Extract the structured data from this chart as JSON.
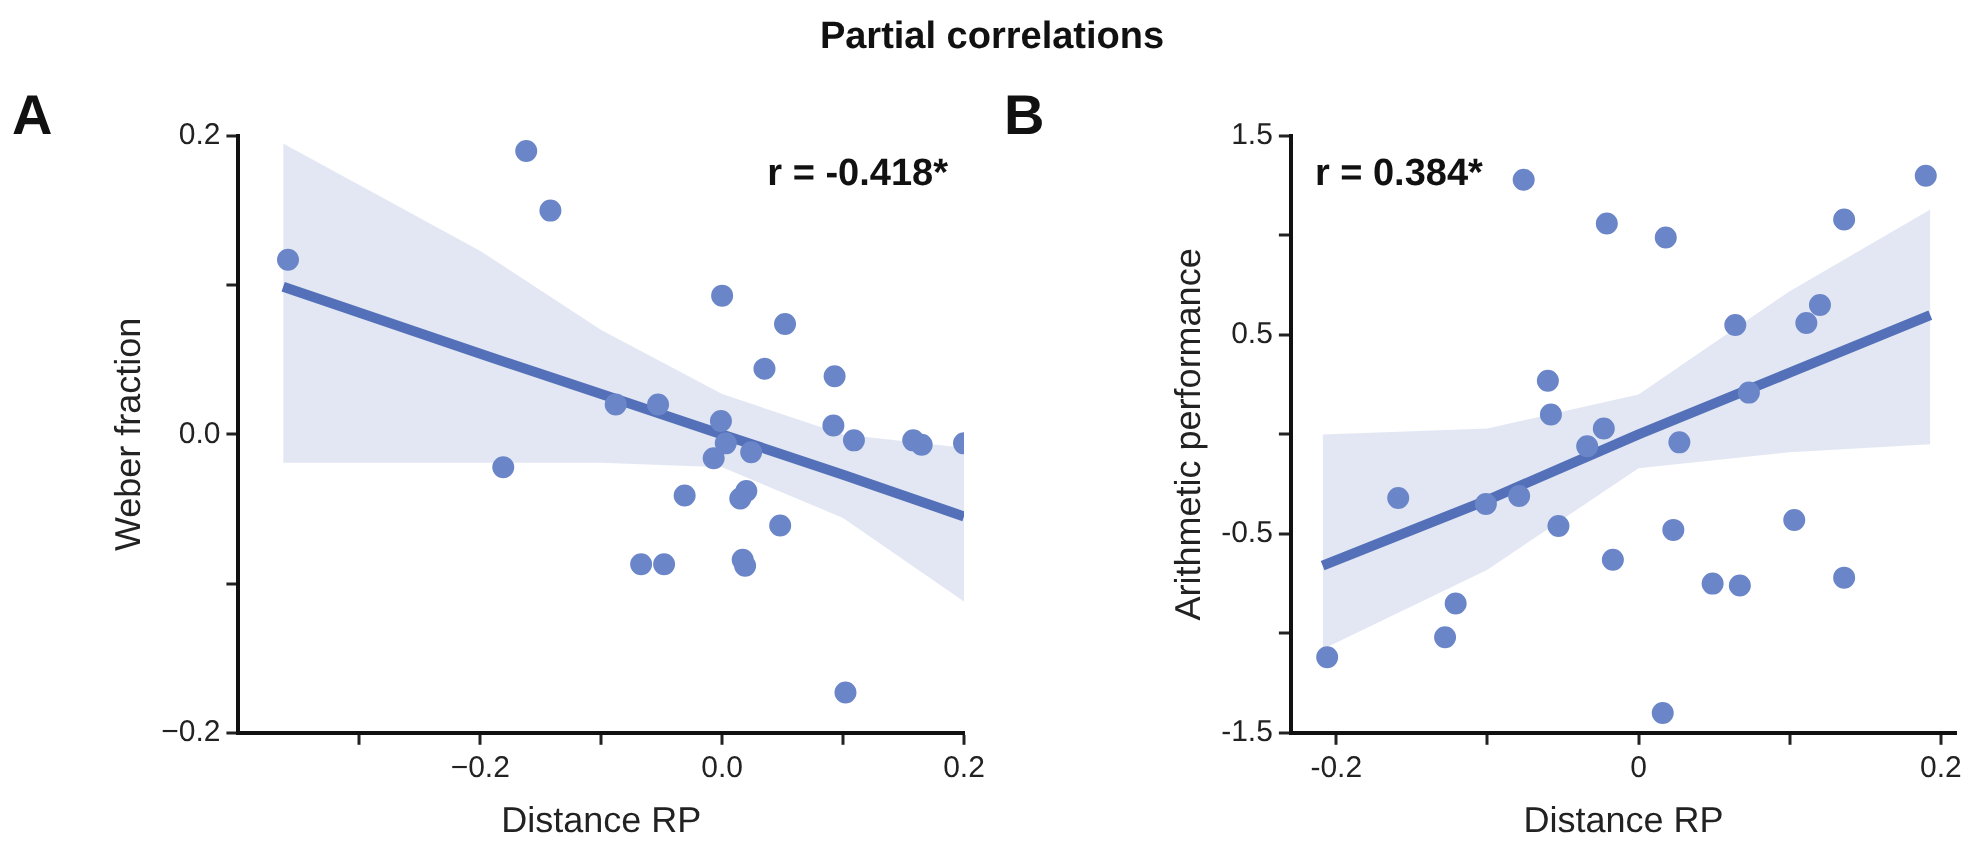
{
  "chart_data": [
    {
      "type": "scatter",
      "title": "Partial correlations",
      "xlabel": "Distance RP",
      "ylabel": "Weber fraction",
      "annotations": [
        "A",
        "r = -0.418*"
      ],
      "legend": false,
      "grid": false,
      "xlim": [
        -0.4,
        0.2
      ],
      "xticks": [
        {
          "value": -0.3,
          "label": null
        },
        {
          "value": -0.2,
          "label": "−0.2"
        },
        {
          "value": -0.1,
          "label": null
        },
        {
          "value": 0,
          "label": "0.0"
        },
        {
          "value": 0.1,
          "label": null
        },
        {
          "value": 0.2,
          "label": "0.2"
        }
      ],
      "ylim": [
        -0.2,
        0.2
      ],
      "yticks": [
        {
          "value": -0.2,
          "label": "−0.2"
        },
        {
          "value": -0.1,
          "label": null
        },
        {
          "value": 0,
          "label": "0.0"
        },
        {
          "value": 0.1,
          "label": null
        },
        {
          "value": 0.2,
          "label": "0.2"
        }
      ],
      "series": [
        {
          "marker": "circle",
          "color": "#6b86c8",
          "x": [
            -0.359,
            -0.162,
            -0.142,
            -0.181,
            -0.088,
            -0.053,
            0.0,
            0.052,
            0.035,
            0.093,
            0.092,
            -0.001,
            0.003,
            -0.007,
            0.024,
            0.109,
            0.158,
            0.165,
            0.2,
            -0.031,
            0.015,
            0.02,
            0.048,
            -0.067,
            -0.048,
            0.017,
            0.019,
            0.102
          ],
          "values": [
            0.117,
            0.19,
            0.15,
            -0.022,
            0.02,
            0.02,
            0.093,
            0.074,
            0.044,
            0.039,
            0.006,
            0.009,
            -0.006,
            -0.016,
            -0.012,
            -0.004,
            -0.004,
            -0.007,
            -0.006,
            -0.041,
            -0.043,
            -0.038,
            -0.061,
            -0.087,
            -0.087,
            -0.084,
            -0.088,
            -0.173
          ]
        },
        {
          "type": "line",
          "marker": "none",
          "color": "#5470b8",
          "x": [
            -0.363,
            -0.2,
            -0.1,
            0,
            0.1,
            0.2
          ],
          "values": [
            0.099,
            0.054,
            0.027,
            0.0,
            -0.027,
            -0.055
          ],
          "lower": [
            -0.019,
            -0.019,
            -0.019,
            -0.022,
            -0.056,
            -0.112
          ],
          "upper": [
            0.195,
            0.123,
            0.07,
            0.027,
            0.0,
            -0.009
          ]
        }
      ]
    },
    {
      "type": "scatter",
      "xlabel": "Distance RP",
      "ylabel": "Arithmetic performance",
      "annotations": [
        "B",
        "r = 0.384*"
      ],
      "legend": false,
      "grid": false,
      "xlim": [
        -0.23,
        0.21
      ],
      "xticks": [
        -0.2,
        {
          "value": -0.1,
          "label": null
        },
        0,
        {
          "value": 0.1,
          "label": null
        },
        0.2
      ],
      "ylim": [
        -1.5,
        1.5
      ],
      "yticks": [
        -1.5,
        {
          "value": -1,
          "label": null
        },
        -0.5,
        {
          "value": 0,
          "label": null
        },
        0.5,
        {
          "value": 1,
          "label": null
        },
        1.5
      ],
      "series": [
        {
          "marker": "circle",
          "color": "#6b86c8",
          "x": [
            -0.206,
            -0.159,
            -0.128,
            -0.121,
            -0.101,
            -0.079,
            -0.076,
            -0.06,
            -0.058,
            -0.053,
            -0.034,
            -0.023,
            -0.021,
            -0.017,
            0.018,
            0.016,
            0.023,
            0.027,
            0.049,
            0.064,
            0.067,
            0.073,
            0.103,
            0.111,
            0.12,
            0.136,
            0.136,
            0.19
          ],
          "values": [
            -1.12,
            -0.32,
            -1.02,
            -0.85,
            -0.35,
            -0.31,
            1.28,
            0.27,
            0.1,
            -0.46,
            -0.06,
            0.03,
            1.06,
            -0.63,
            0.99,
            -1.4,
            -0.48,
            -0.04,
            -0.75,
            0.55,
            -0.76,
            0.21,
            -0.43,
            0.56,
            0.65,
            1.08,
            -0.72,
            1.3
          ]
        },
        {
          "type": "line",
          "marker": "none",
          "color": "#5470b8",
          "x": [
            -0.209,
            -0.1,
            0,
            0.1,
            0.193
          ],
          "values": [
            -0.66,
            -0.33,
            0.0,
            0.31,
            0.6
          ],
          "lower": [
            -1.08,
            -0.68,
            -0.17,
            -0.09,
            -0.05
          ],
          "upper": [
            0.0,
            0.03,
            0.2,
            0.72,
            1.13
          ]
        }
      ]
    }
  ]
}
